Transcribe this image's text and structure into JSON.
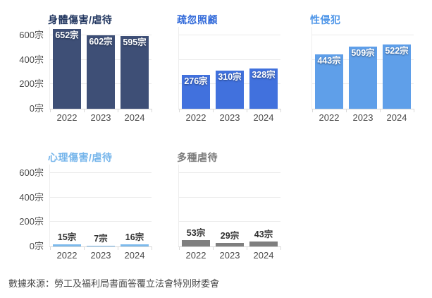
{
  "page": {
    "background": "#ffffff"
  },
  "footer": {
    "source_label": "數據來源：勞工及福利局書面答覆立法會特別財委會"
  },
  "axis": {
    "unit": "宗",
    "categories": [
      "2022",
      "2023",
      "2024"
    ],
    "y_ticks": [
      0,
      200,
      400,
      600
    ],
    "ylim": [
      0,
      669
    ],
    "tick_color": "#4a4a4a",
    "grid_color": "#ebebeb",
    "axis_color": "#d9d9d9"
  },
  "chart_data": [
    {
      "type": "bar",
      "title": "身體傷害/虐待",
      "categories": [
        "2022",
        "2023",
        "2024"
      ],
      "values": [
        652,
        602,
        595
      ],
      "labels": [
        "652宗",
        "602宗",
        "595宗"
      ],
      "unit": "宗",
      "ylim": [
        0,
        669
      ],
      "y_ticks": [
        0,
        200,
        400,
        600
      ],
      "grid": true,
      "bar_color": "#3e4f76",
      "title_color": "#233861",
      "value_label_position": "inside",
      "value_label_color": "#ffffff",
      "show_y_axis": true
    },
    {
      "type": "bar",
      "title": "疏忽照顧",
      "categories": [
        "2022",
        "2023",
        "2024"
      ],
      "values": [
        276,
        310,
        328
      ],
      "labels": [
        "276宗",
        "310宗",
        "328宗"
      ],
      "unit": "宗",
      "ylim": [
        0,
        669
      ],
      "y_ticks": [
        0,
        200,
        400,
        600
      ],
      "grid": true,
      "bar_color": "#4171dd",
      "title_color": "#2f68d9",
      "value_label_position": "inside",
      "value_label_color": "#ffffff",
      "show_y_axis": false
    },
    {
      "type": "bar",
      "title": "性侵犯",
      "categories": [
        "2022",
        "2023",
        "2024"
      ],
      "values": [
        443,
        509,
        522
      ],
      "labels": [
        "443宗",
        "509宗",
        "522宗"
      ],
      "unit": "宗",
      "ylim": [
        0,
        669
      ],
      "y_ticks": [
        0,
        200,
        400,
        600
      ],
      "grid": true,
      "bar_color": "#5f9fe9",
      "title_color": "#4d95e8",
      "value_label_position": "inside",
      "value_label_color": "#ffffff",
      "show_y_axis": false
    },
    {
      "type": "bar",
      "title": "心理傷害/虐待",
      "categories": [
        "2022",
        "2023",
        "2024"
      ],
      "values": [
        15,
        7,
        16
      ],
      "labels": [
        "15宗",
        "7宗",
        "16宗"
      ],
      "unit": "宗",
      "ylim": [
        0,
        669
      ],
      "y_ticks": [
        0,
        200,
        400,
        600
      ],
      "grid": true,
      "bar_color": "#7dbaec",
      "title_color": "#75b5eb",
      "value_label_position": "above",
      "value_label_color": "#303030",
      "show_y_axis": true
    },
    {
      "type": "bar",
      "title": "多種虐待",
      "categories": [
        "2022",
        "2023",
        "2024"
      ],
      "values": [
        53,
        29,
        43
      ],
      "labels": [
        "53宗",
        "29宗",
        "43宗"
      ],
      "unit": "宗",
      "ylim": [
        0,
        669
      ],
      "y_ticks": [
        0,
        200,
        400,
        600
      ],
      "grid": true,
      "bar_color": "#7f7f7f",
      "title_color": "#7a7a7a",
      "value_label_position": "above",
      "value_label_color": "#303030",
      "show_y_axis": false
    }
  ]
}
